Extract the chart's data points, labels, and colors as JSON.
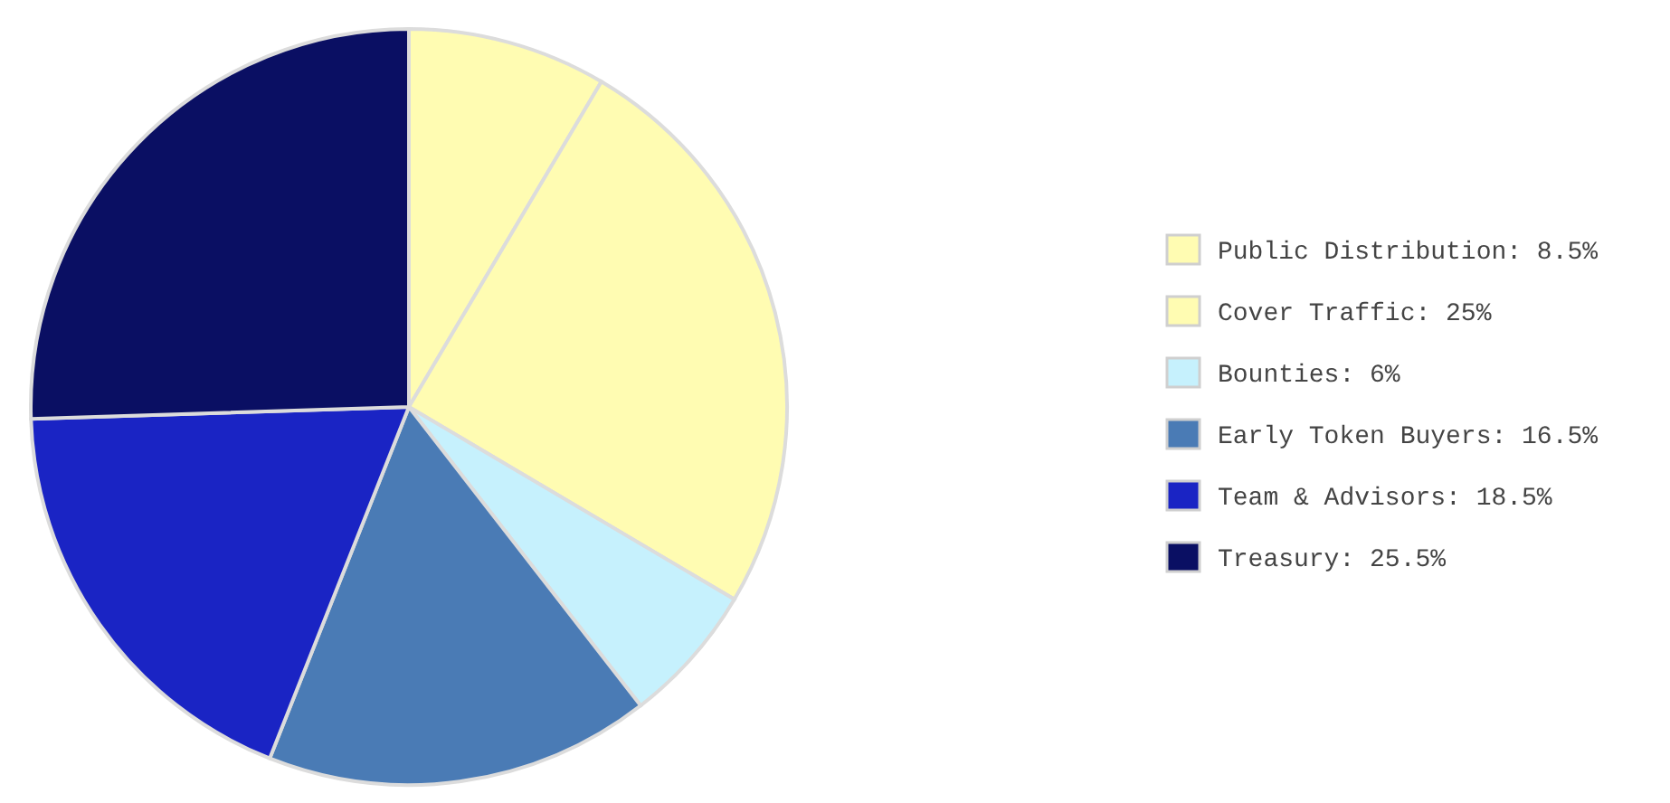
{
  "chart_data": {
    "type": "pie",
    "categories": [
      "Public Distribution",
      "Cover Traffic",
      "Bounties",
      "Early Token Buyers",
      "Team & Advisors",
      "Treasury"
    ],
    "values": [
      8.5,
      25,
      6,
      16.5,
      18.5,
      25.5
    ],
    "value_labels": [
      "8.5%",
      "25%",
      "6%",
      "16.5%",
      "18.5%",
      "25.5%"
    ],
    "colors": [
      "#fffcb2",
      "#fffcb2",
      "#c6f1fd",
      "#4a7bb5",
      "#1a24c4",
      "#0a0f63"
    ],
    "legend": "right"
  }
}
